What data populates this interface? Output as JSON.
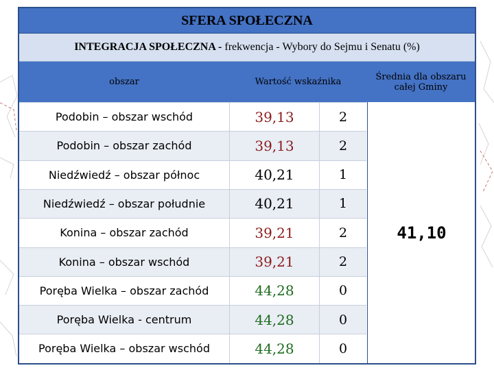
{
  "title": "SFERA SPOŁECZNA",
  "subtitle": {
    "bold": "INTEGRACJA SPOŁECZNA -",
    "rest": "frekwencja - Wybory do Sejmu i Senatu (%)"
  },
  "headers": {
    "area": "obszar",
    "value": "Wartość wskaźnika",
    "avg": "Średnia dla obszaru całej Gminy"
  },
  "rows": [
    {
      "area": "Podobin – obszar wschód",
      "value": "39,13",
      "rank": "2",
      "value_color": "#8b1a1a"
    },
    {
      "area": "Podobin – obszar zachód",
      "value": "39,13",
      "rank": "2",
      "value_color": "#8b1a1a"
    },
    {
      "area": "Niedźwiedź – obszar północ",
      "value": "40,21",
      "rank": "1",
      "value_color": "#000000"
    },
    {
      "area": "Niedźwiedź – obszar południe",
      "value": "40,21",
      "rank": "1",
      "value_color": "#000000"
    },
    {
      "area": "Konina – obszar zachód",
      "value": "39,21",
      "rank": "2",
      "value_color": "#8b1a1a"
    },
    {
      "area": "Konina – obszar wschód",
      "value": "39,21",
      "rank": "2",
      "value_color": "#8b1a1a"
    },
    {
      "area": "Poręba Wielka – obszar zachód",
      "value": "44,28",
      "rank": "0",
      "value_color": "#1e6b1e"
    },
    {
      "area": "Poręba Wielka - centrum",
      "value": "44,28",
      "rank": "0",
      "value_color": "#1e6b1e"
    },
    {
      "area": "Poręba Wielka – obszar wschód",
      "value": "44,28",
      "rank": "0",
      "value_color": "#1e6b1e"
    }
  ],
  "average": "41,10",
  "colors": {
    "header_blue": "#4472c4",
    "subtitle_bg": "#d6e0f0",
    "below_avg": "#8b1a1a",
    "above_avg": "#1e6b1e"
  }
}
